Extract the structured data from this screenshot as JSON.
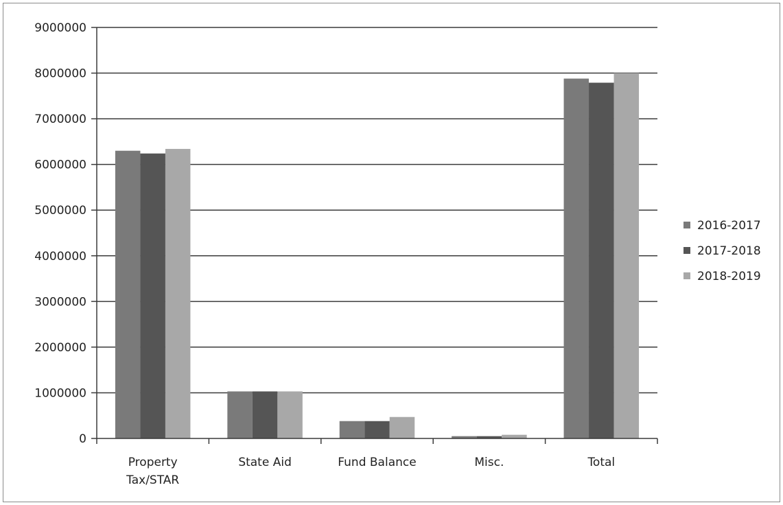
{
  "chart_data": {
    "type": "bar",
    "title": "",
    "xlabel": "",
    "ylabel": "",
    "categories": [
      "Property Tax/STAR",
      "State Aid",
      "Fund Balance",
      "Misc.",
      "Total"
    ],
    "category_lines": [
      [
        "Property",
        "Tax/STAR"
      ],
      [
        "State Aid"
      ],
      [
        "Fund Balance"
      ],
      [
        "Misc."
      ],
      [
        "Total"
      ]
    ],
    "series": [
      {
        "name": "2016-2017",
        "color": "#7a7a7a",
        "values": [
          6300000,
          1030000,
          380000,
          50000,
          7880000
        ]
      },
      {
        "name": "2017-2018",
        "color": "#555555",
        "values": [
          6240000,
          1030000,
          380000,
          50000,
          7790000
        ]
      },
      {
        "name": "2018-2019",
        "color": "#a8a8a8",
        "values": [
          6340000,
          1030000,
          470000,
          80000,
          8000000
        ]
      }
    ],
    "yticks": [
      "0",
      "1000000",
      "2000000",
      "3000000",
      "4000000",
      "5000000",
      "6000000",
      "7000000",
      "8000000",
      "9000000"
    ],
    "ylim": [
      0,
      9000000
    ],
    "grid": true,
    "legend_position": "right"
  }
}
